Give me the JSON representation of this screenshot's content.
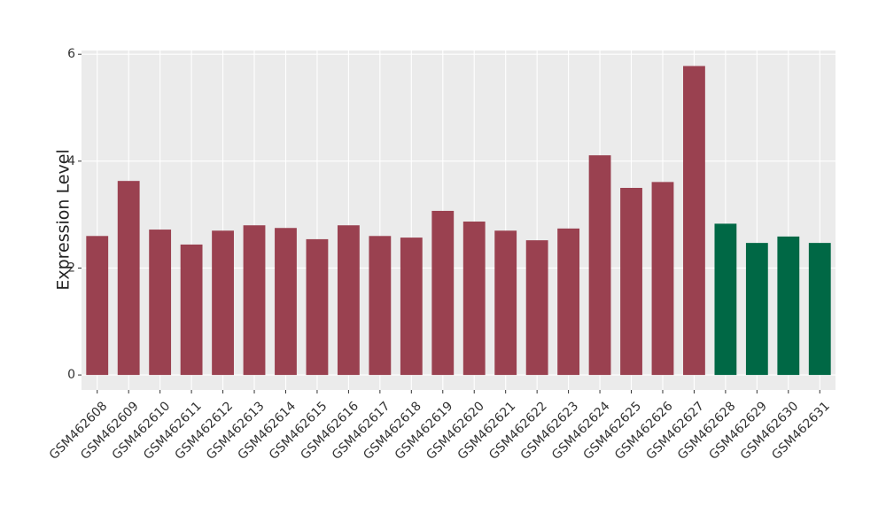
{
  "chart_data": {
    "type": "bar",
    "y_label": "Expression Level",
    "categories": [
      "GSM462608",
      "GSM462609",
      "GSM462610",
      "GSM462611",
      "GSM462612",
      "GSM462613",
      "GSM462614",
      "GSM462615",
      "GSM462616",
      "GSM462617",
      "GSM462618",
      "GSM462619",
      "GSM462620",
      "GSM462621",
      "GSM462622",
      "GSM462623",
      "GSM462624",
      "GSM462625",
      "GSM462626",
      "GSM462627",
      "GSM462628",
      "GSM462629",
      "GSM462630",
      "GSM462631"
    ],
    "values": [
      2.6,
      3.63,
      2.72,
      2.44,
      2.7,
      2.8,
      2.75,
      2.54,
      2.8,
      2.6,
      2.57,
      3.07,
      2.87,
      2.7,
      2.52,
      2.74,
      4.11,
      3.5,
      3.61,
      5.78,
      2.83,
      2.47,
      2.59,
      2.47
    ],
    "colors": [
      "#9a4150",
      "#9a4150",
      "#9a4150",
      "#9a4150",
      "#9a4150",
      "#9a4150",
      "#9a4150",
      "#9a4150",
      "#9a4150",
      "#9a4150",
      "#9a4150",
      "#9a4150",
      "#9a4150",
      "#9a4150",
      "#9a4150",
      "#9a4150",
      "#9a4150",
      "#9a4150",
      "#9a4150",
      "#9a4150",
      "#006845",
      "#006845",
      "#006845",
      "#006845"
    ],
    "ylim": [
      -0.28,
      6.07
    ],
    "yticks": [
      0,
      2,
      4,
      6
    ],
    "grid": true,
    "background": "#ebebeb"
  }
}
